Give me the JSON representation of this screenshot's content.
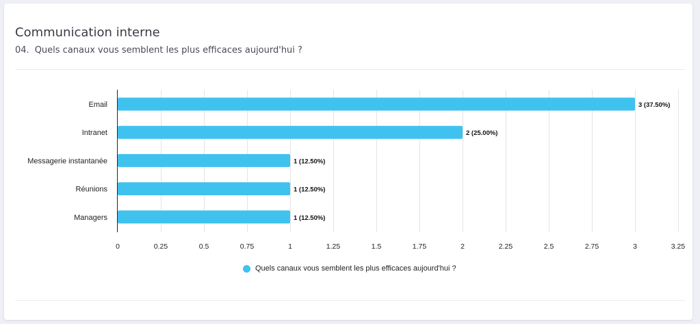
{
  "section": {
    "title": "Communication interne"
  },
  "question": {
    "number": "04.",
    "text": "Quels canaux vous semblent les plus efficaces aujourd'hui ?"
  },
  "colors": {
    "bar": "#40c2ef",
    "grid": "#e4e4e4",
    "axis": "#222222"
  },
  "chart_data": {
    "type": "bar",
    "orientation": "horizontal",
    "categories": [
      "Email",
      "Intranet",
      "Messagerie instantanée",
      "Réunions",
      "Managers"
    ],
    "series": [
      {
        "name": "Quels canaux vous semblent les plus efficaces aujourd'hui ?",
        "values": [
          3,
          2,
          1,
          1,
          1
        ],
        "data_labels": [
          "3 (37.50%)",
          "2 (25.00%)",
          "1 (12.50%)",
          "1 (12.50%)",
          "1 (12.50%)"
        ]
      }
    ],
    "xlim": [
      0,
      3.25
    ],
    "xticks": [
      0,
      0.25,
      0.5,
      0.75,
      1,
      1.25,
      1.5,
      1.75,
      2,
      2.25,
      2.5,
      2.75,
      3,
      3.25
    ],
    "xtick_labels": [
      "0",
      "0.25",
      "0.5",
      "0.75",
      "1",
      "1.25",
      "1.5",
      "1.75",
      "2",
      "2.25",
      "2.5",
      "2.75",
      "3",
      "3.25"
    ],
    "grid": true,
    "legend_position": "bottom-center"
  }
}
